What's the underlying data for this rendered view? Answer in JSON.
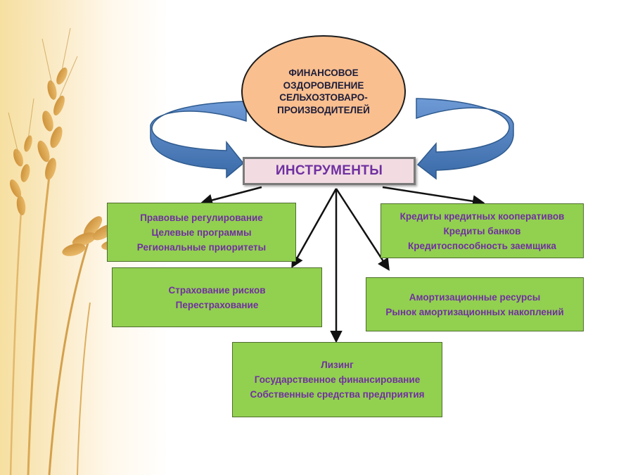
{
  "center": {
    "lines": [
      "ФИНАНСОВОЕ",
      "ОЗДОРОВЛЕНИЕ",
      "СЕЛЬХОЗТОВАРО-",
      "ПРОИЗВОДИТЕЛЕЙ"
    ]
  },
  "instruments": {
    "label": "ИНСТРУМЕНТЫ"
  },
  "boxes": {
    "legal": [
      "Правовые регулирование",
      "Целевые программы",
      "Региональные приоритеты"
    ],
    "insurance": [
      "Страхование рисков",
      "Перестрахование"
    ],
    "credit": [
      "Кредиты кредитных кооперативов",
      "Кредиты банков",
      "Кредитоспособность заемщика"
    ],
    "amortization": [
      "Амортизационные ресурсы",
      "Рынок амортизационных накоплений"
    ],
    "leasing": [
      "Лизинг",
      "Государственное финансирование",
      "Собственные средства предприятия"
    ]
  },
  "colors": {
    "ellipse_fill": "#f9bf8f",
    "instruments_fill": "#f2dce2",
    "instruments_text": "#7030a0",
    "box_fill": "#92d050",
    "box_text": "#7030a0",
    "curved_arrow_fill": "#4f81bd"
  }
}
